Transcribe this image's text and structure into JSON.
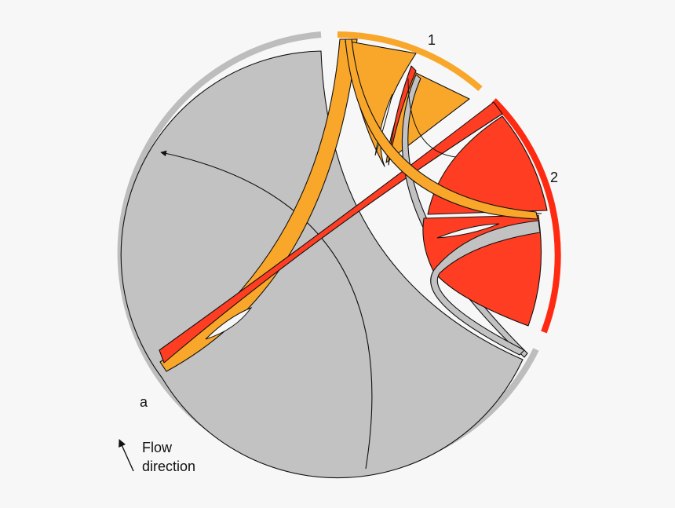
{
  "diagram": {
    "type": "chord",
    "segments": [
      {
        "label": "a",
        "color": "#c0c0c0",
        "ring_color": "#bdbdbd"
      },
      {
        "label": "1",
        "color": "#f9a72b",
        "ring_color": "#f9a72b"
      },
      {
        "label": "2",
        "color": "#ff3d22",
        "ring_color": "#ff2a12"
      }
    ],
    "legend": {
      "line1": "Flow",
      "line2": "direction",
      "icon": "arrow-up-left-icon"
    }
  }
}
